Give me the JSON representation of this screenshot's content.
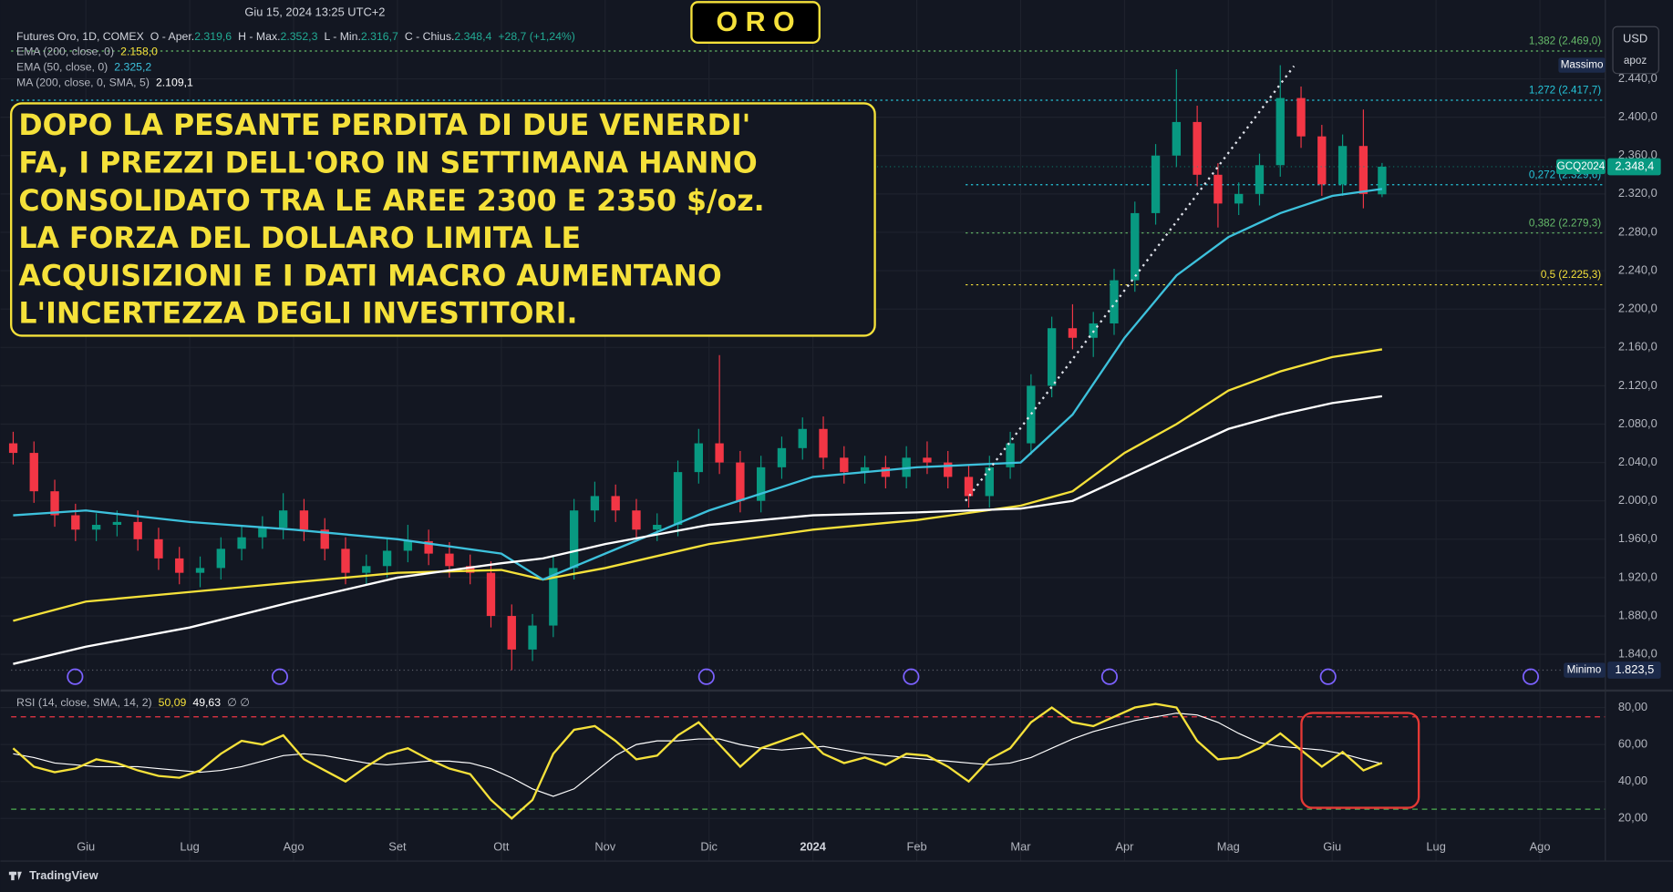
{
  "chart_data": {
    "type": "candlestick",
    "title": "O R O",
    "timestamp": "Giu 15, 2024 13:25 UTC+2",
    "symbol": "Futures Oro, 1D, COMEX",
    "ohlc_legend": [
      {
        "label": "O - Aper.",
        "value_label": "2.319,6"
      },
      {
        "label": "H - Max.",
        "value_label": "2.352,3"
      },
      {
        "label": "L - Min.",
        "value_label": "2.316,7"
      },
      {
        "label": "C - Chius.",
        "value_label": "2.348,4"
      }
    ],
    "change_label": "+28,7 (+1,24%)",
    "currency": "USD",
    "account": "apoz",
    "annotation": [
      "DOPO LA PESANTE PERDITA DI DUE VENERDI'",
      "FA, I PREZZI DELL'ORO IN SETTIMANA HANNO",
      "CONSOLIDATO TRA LE AREE 2300 E 2350 $/oz.",
      "LA FORZA DEL DOLLARO LIMITA LE",
      "ACQUISIZIONI E I DATI MACRO AUMENTANO",
      "L'INCERTEZZA DEGLI INVESTITORI."
    ],
    "xlim": [
      -0.72,
      14.63
    ],
    "xticks": [
      {
        "value": 0,
        "label": "Giu"
      },
      {
        "value": 1,
        "label": "Lug"
      },
      {
        "value": 2,
        "label": "Ago"
      },
      {
        "value": 3,
        "label": "Set"
      },
      {
        "value": 4,
        "label": "Ott"
      },
      {
        "value": 5,
        "label": "Nov"
      },
      {
        "value": 6,
        "label": "Dic"
      },
      {
        "value": 7,
        "label": "2024"
      },
      {
        "value": 8,
        "label": "Feb"
      },
      {
        "value": 9,
        "label": "Mar"
      },
      {
        "value": 10,
        "label": "Apr"
      },
      {
        "value": 11,
        "label": "Mag"
      },
      {
        "value": 12,
        "label": "Giu"
      },
      {
        "value": 13,
        "label": "Lug"
      },
      {
        "value": 14,
        "label": "Ago"
      }
    ],
    "ylim": [
      1802.2,
      2522.2
    ],
    "yticks": [
      {
        "value": 1840,
        "label": "1.840,0"
      },
      {
        "value": 1880,
        "label": "1.880,0"
      },
      {
        "value": 1920,
        "label": "1.920,0"
      },
      {
        "value": 1960,
        "label": "1.960,0"
      },
      {
        "value": 2000,
        "label": "2.000,0"
      },
      {
        "value": 2040,
        "label": "2.040,0"
      },
      {
        "value": 2080,
        "label": "2.080,0"
      },
      {
        "value": 2120,
        "label": "2.120,0"
      },
      {
        "value": 2160,
        "label": "2.160,0"
      },
      {
        "value": 2200,
        "label": "2.200,0"
      },
      {
        "value": 2240,
        "label": "2.240,0"
      },
      {
        "value": 2280,
        "label": "2.280,0"
      },
      {
        "value": 2320,
        "label": "2.320,0"
      },
      {
        "value": 2360,
        "label": "2.360,0"
      },
      {
        "value": 2400,
        "label": "2.400,0"
      },
      {
        "value": 2440,
        "label": "2.440,0"
      }
    ],
    "grid": true,
    "candles": {
      "up_color": "#089981",
      "down_color": "#f23645",
      "x": [
        -0.7,
        -0.5,
        -0.3,
        -0.1,
        0.1,
        0.3,
        0.5,
        0.7,
        0.9,
        1.1,
        1.3,
        1.5,
        1.7,
        1.9,
        2.1,
        2.3,
        2.5,
        2.7,
        2.9,
        3.1,
        3.3,
        3.5,
        3.7,
        3.9,
        4.1,
        4.3,
        4.5,
        4.7,
        4.9,
        5.1,
        5.3,
        5.5,
        5.7,
        5.9,
        6.1,
        6.3,
        6.5,
        6.7,
        6.9,
        7.1,
        7.3,
        7.5,
        7.7,
        7.9,
        8.1,
        8.3,
        8.5,
        8.7,
        8.9,
        9.1,
        9.3,
        9.5,
        9.7,
        9.9,
        10.1,
        10.3,
        10.5,
        10.7,
        10.9,
        11.1,
        11.3,
        11.5,
        11.7,
        11.9,
        12.1,
        12.3,
        12.48
      ],
      "open": [
        2060,
        2050,
        2010,
        1985,
        1970,
        1975,
        1978,
        1960,
        1940,
        1925,
        1930,
        1950,
        1962,
        1972,
        1990,
        1970,
        1950,
        1925,
        1932,
        1948,
        1958,
        1945,
        1932,
        1925,
        1880,
        1845,
        1870,
        1930,
        1990,
        2005,
        1990,
        1970,
        1975,
        2030,
        2060,
        2040,
        2000,
        2035,
        2055,
        2075,
        2045,
        2030,
        2035,
        2025,
        2045,
        2040,
        2025,
        2005,
        2035,
        2060,
        2120,
        2180,
        2170,
        2185,
        2230,
        2300,
        2360,
        2395,
        2340,
        2310,
        2320,
        2350,
        2420,
        2380,
        2330,
        2370,
        2319.6
      ],
      "high": [
        2072,
        2062,
        2022,
        1997,
        1987,
        1990,
        1990,
        1972,
        1952,
        1942,
        1962,
        1974,
        1984,
        2008,
        2002,
        1982,
        1962,
        1944,
        1960,
        1975,
        1970,
        1957,
        1944,
        1937,
        1892,
        1882,
        1942,
        2002,
        2020,
        2017,
        2002,
        1987,
        2042,
        2075,
        2152,
        2052,
        2047,
        2067,
        2087,
        2088,
        2057,
        2047,
        2047,
        2057,
        2062,
        2052,
        2037,
        2047,
        2072,
        2132,
        2192,
        2205,
        2197,
        2242,
        2312,
        2372,
        2450,
        2412,
        2352,
        2332,
        2362,
        2454.2,
        2432,
        2392,
        2382,
        2408,
        2352.3
      ],
      "low": [
        2038,
        1998,
        1973,
        1958,
        1958,
        1963,
        1948,
        1928,
        1913,
        1910,
        1918,
        1938,
        1950,
        1960,
        1958,
        1938,
        1913,
        1913,
        1920,
        1936,
        1933,
        1920,
        1913,
        1868,
        1823.5,
        1833,
        1858,
        1918,
        1978,
        1978,
        1958,
        1958,
        1963,
        2018,
        2028,
        1988,
        1988,
        2023,
        2043,
        2033,
        2018,
        2018,
        2013,
        2013,
        2028,
        2013,
        1993,
        1993,
        2023,
        2048,
        2108,
        2158,
        2150,
        2173,
        2218,
        2288,
        2348,
        2328,
        2285,
        2298,
        2308,
        2338,
        2368,
        2318,
        2318,
        2305,
        2316.7
      ],
      "close": [
        2050,
        2010,
        1985,
        1970,
        1975,
        1978,
        1960,
        1940,
        1925,
        1930,
        1950,
        1962,
        1972,
        1990,
        1970,
        1950,
        1925,
        1932,
        1948,
        1958,
        1945,
        1932,
        1925,
        1880,
        1845,
        1870,
        1930,
        1990,
        2005,
        1990,
        1970,
        1975,
        2030,
        2060,
        2040,
        2000,
        2035,
        2055,
        2075,
        2045,
        2030,
        2035,
        2025,
        2045,
        2040,
        2025,
        2005,
        2035,
        2060,
        2120,
        2180,
        2170,
        2185,
        2230,
        2300,
        2360,
        2395,
        2340,
        2310,
        2320,
        2350,
        2420,
        2380,
        2330,
        2370,
        2320,
        2348.4
      ]
    },
    "last_price": {
      "symbol": "GCQ2024",
      "label": "2.348,4",
      "color": "#089981"
    },
    "high_marker": {
      "label": "Massimo",
      "value": 2454.2
    },
    "low_marker": {
      "label": "Minimo",
      "value": 1823.5,
      "value_label": "1.823,5"
    },
    "moving_averages": [
      {
        "name": "EMA (200, close, 0)",
        "color": "#f5e13a",
        "value_label": "2.158,0",
        "x": [
          -0.7,
          0,
          1,
          2,
          3,
          4,
          4.4,
          5,
          6,
          7,
          8,
          9,
          9.5,
          10,
          10.5,
          11,
          11.5,
          12,
          12.48
        ],
        "values": [
          1875,
          1895,
          1905,
          1915,
          1925,
          1928,
          1918,
          1930,
          1955,
          1970,
          1980,
          1995,
          2010,
          2050,
          2080,
          2115,
          2135,
          2150,
          2158.0
        ]
      },
      {
        "name": "EMA (50, close, 0)",
        "color": "#3dc1dc",
        "value_label": "2.325,2",
        "x": [
          -0.7,
          0,
          1,
          2,
          3,
          4,
          4.4,
          5,
          6,
          7,
          8,
          9,
          9.5,
          10,
          10.5,
          11,
          11.5,
          12,
          12.48
        ],
        "values": [
          1985,
          1990,
          1978,
          1970,
          1960,
          1945,
          1918,
          1945,
          1990,
          2025,
          2035,
          2040,
          2090,
          2170,
          2235,
          2275,
          2300,
          2318,
          2325.2
        ]
      },
      {
        "name": "MA (200, close, 0, SMA, 5)",
        "color": "#ffffff",
        "value_label": "2.109,1",
        "x": [
          -0.7,
          0,
          1,
          2,
          3,
          4,
          4.4,
          5,
          6,
          7,
          8,
          9,
          9.5,
          10,
          10.5,
          11,
          11.5,
          12,
          12.48
        ],
        "values": [
          1830,
          1848,
          1868,
          1895,
          1920,
          1935,
          1940,
          1955,
          1975,
          1985,
          1988,
          1992,
          2000,
          2025,
          2050,
          2075,
          2090,
          2102,
          2109.1
        ]
      }
    ],
    "fib_levels": [
      {
        "label": "1,382 (2.469,0)",
        "value": 2469.0,
        "color": "#66bb6a",
        "x_start": -0.72
      },
      {
        "label": "1,272 (2.417,7)",
        "value": 2417.7,
        "color": "#26c6da",
        "x_start": -0.72
      },
      {
        "label": "0,272 (2.329,6)",
        "value": 2329.6,
        "color": "#26c6da",
        "x_start": 8.47
      },
      {
        "label": "0,382 (2.279,3)",
        "value": 2279.3,
        "color": "#66bb6a",
        "x_start": 8.47
      },
      {
        "label": "0,5 (2.225,3)",
        "value": 2225.3,
        "color": "#f5e13a",
        "x_start": 8.47
      }
    ],
    "rsi": {
      "name": "RSI (14, close, SMA, 14, 2)",
      "na_label": "∅ ∅",
      "ylim": [
        13.06,
        89.2
      ],
      "yticks": [
        {
          "value": 20,
          "label": "20,00"
        },
        {
          "value": 40,
          "label": "40,00"
        },
        {
          "value": 60,
          "label": "60,00"
        },
        {
          "value": 80,
          "label": "80,00"
        }
      ],
      "levels": [
        {
          "value": 75,
          "color": "#f23645"
        },
        {
          "value": 25,
          "color": "#4caf50"
        }
      ],
      "series": [
        {
          "color": "#f5e13a",
          "value_label": "50,09",
          "values": [
            58,
            48,
            45,
            47,
            52,
            50,
            46,
            43,
            42,
            46,
            55,
            62,
            60,
            65,
            52,
            46,
            40,
            48,
            55,
            58,
            52,
            47,
            44,
            30,
            20,
            30,
            55,
            68,
            70,
            62,
            52,
            54,
            65,
            72,
            60,
            48,
            58,
            62,
            66,
            55,
            50,
            53,
            49,
            55,
            54,
            48,
            40,
            52,
            58,
            72,
            80,
            72,
            70,
            75,
            80,
            82,
            80,
            62,
            52,
            53,
            58,
            66,
            57,
            48,
            56,
            46,
            50.09
          ]
        },
        {
          "color": "#ffffff",
          "value_label": "49,63",
          "values": [
            55,
            53,
            50,
            49,
            48,
            48,
            48,
            47,
            46,
            45,
            46,
            48,
            51,
            54,
            55,
            54,
            52,
            50,
            49,
            50,
            51,
            51,
            50,
            47,
            42,
            36,
            32,
            36,
            45,
            54,
            60,
            62,
            62,
            63,
            63,
            60,
            58,
            57,
            58,
            59,
            57,
            55,
            54,
            53,
            52,
            51,
            50,
            49,
            50,
            53,
            58,
            63,
            67,
            70,
            73,
            75,
            77,
            76,
            72,
            66,
            61,
            59,
            58,
            57,
            55,
            52,
            49.63
          ]
        }
      ]
    },
    "brand": "TradingView"
  }
}
